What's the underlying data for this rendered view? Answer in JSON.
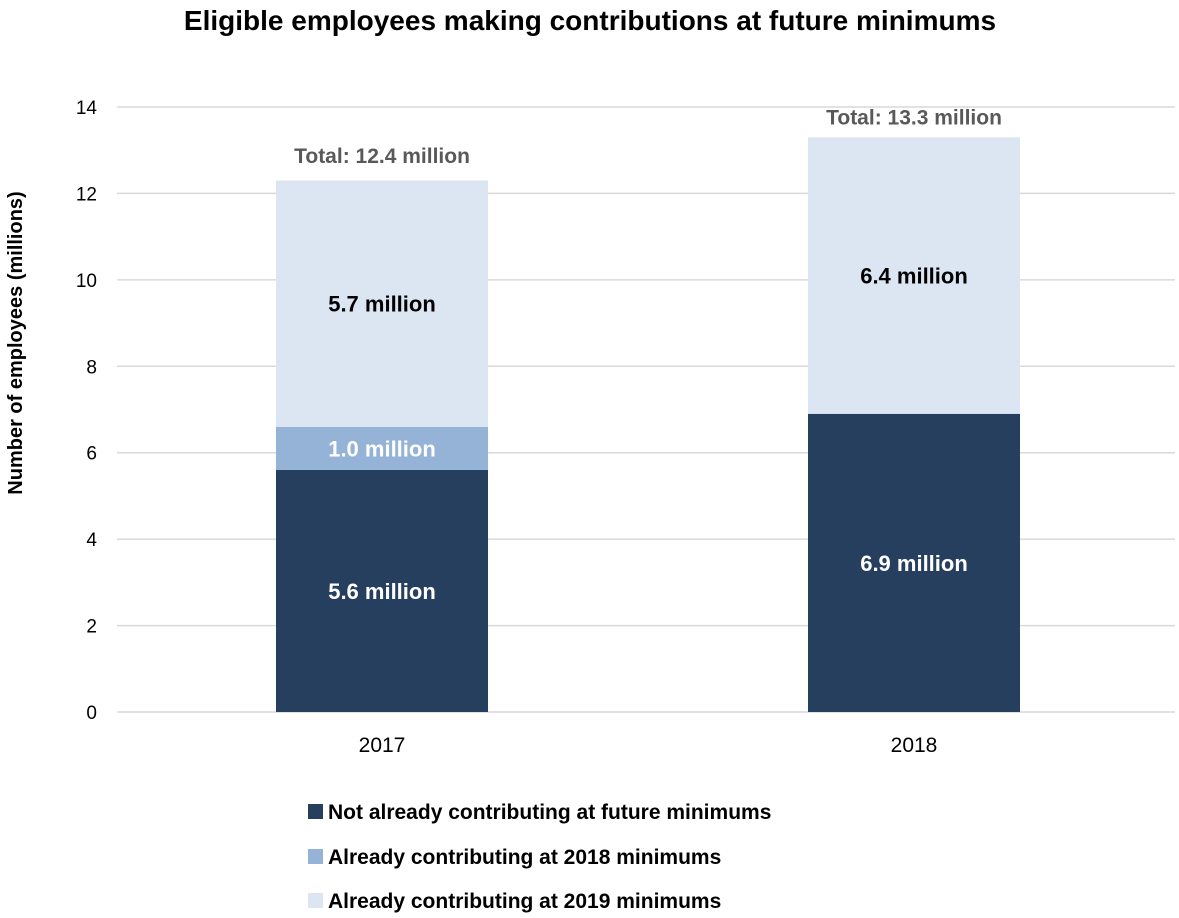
{
  "chart_data": {
    "type": "bar",
    "stacked": true,
    "title": "Eligible employees making contributions at future minimums",
    "xlabel": "",
    "ylabel": "Number of employees (millions)",
    "ylim": [
      0,
      14
    ],
    "yticks": [
      0,
      2,
      4,
      6,
      8,
      10,
      12,
      14
    ],
    "grid": true,
    "legend_position": "bottom",
    "categories": [
      "2017",
      "2018"
    ],
    "series": [
      {
        "name": "Not already contributing at future minimums",
        "color": "#263f5f",
        "label_color": "#ffffff",
        "values": [
          5.6,
          6.9
        ],
        "labels": [
          "5.6 million",
          "6.9 million"
        ]
      },
      {
        "name": "Already contributing at 2018 minimums",
        "color": "#95b3d7",
        "label_color": "#ffffff",
        "values": [
          1.0,
          0
        ],
        "labels": [
          "1.0 million",
          ""
        ]
      },
      {
        "name": "Already contributing at 2019 minimums",
        "color": "#dce6f2",
        "label_color": "#000000",
        "values": [
          5.7,
          6.4
        ],
        "labels": [
          "5.7 million",
          "6.4 million"
        ]
      }
    ],
    "totals": [
      12.4,
      13.3
    ],
    "total_labels": [
      "Total: 12.4 million",
      "Total: 13.3 million"
    ]
  }
}
